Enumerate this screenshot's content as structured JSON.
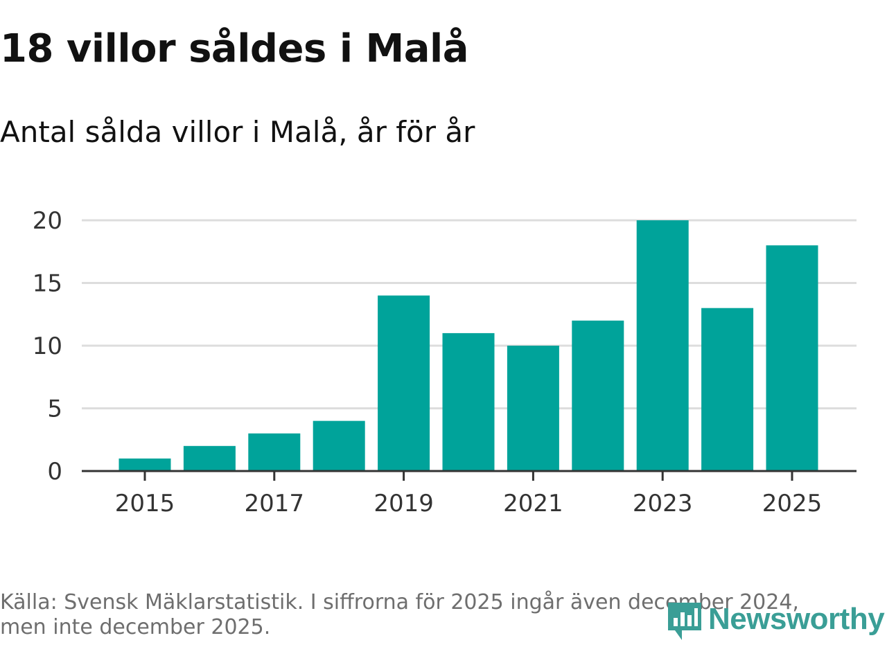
{
  "header": {
    "title": "18 villor såldes i Malå",
    "subtitle": "Antal sålda villor i Malå, år för år"
  },
  "chart_data": {
    "type": "bar",
    "categories": [
      "2015",
      "2016",
      "2017",
      "2018",
      "2019",
      "2020",
      "2021",
      "2022",
      "2023",
      "2024",
      "2025"
    ],
    "values": [
      1,
      2,
      3,
      4,
      14,
      11,
      10,
      12,
      20,
      13,
      18
    ],
    "x_tick_labels": [
      "2015",
      "2017",
      "2019",
      "2021",
      "2023",
      "2025"
    ],
    "y_ticks": [
      0,
      5,
      10,
      15,
      20
    ],
    "ylim": [
      0,
      20
    ],
    "xlabel": "",
    "ylabel": "",
    "grid": true,
    "bar_color": "#00a39a",
    "grid_color": "#dddddd",
    "axis_color": "#333333"
  },
  "footer": {
    "source_line1": "Källa: Svensk Mäklarstatistik. I siffrorna för 2025 ingår även december 2024,",
    "source_line2": "men inte december 2025.",
    "logo_text": "Newsworthy",
    "logo_color": "#3a9e96"
  }
}
